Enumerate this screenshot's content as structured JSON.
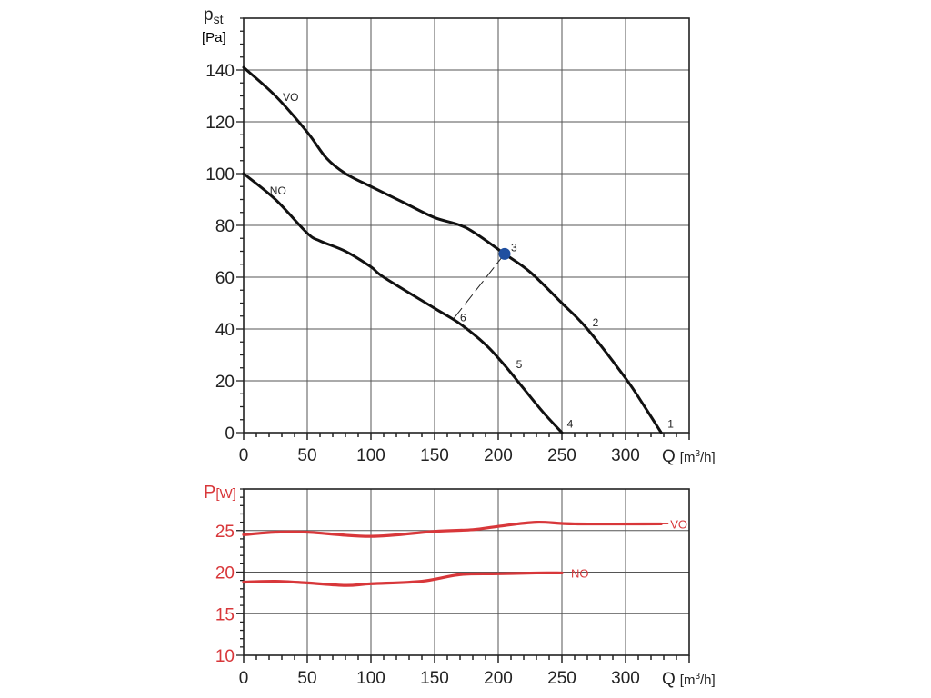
{
  "chart_data": [
    {
      "type": "line",
      "title": "",
      "ylabel_main": "p",
      "ylabel_sub": "st",
      "ylabel_unit": "[Pa]",
      "xlabel": "Q",
      "xlabel_unit_pre": "[m",
      "xlabel_unit_sup": "3",
      "xlabel_unit_post": "/h]",
      "xlim": [
        0,
        350
      ],
      "ylim": [
        0,
        160
      ],
      "xticks": [
        0,
        50,
        100,
        150,
        200,
        250,
        300
      ],
      "yticks": [
        0,
        20,
        40,
        60,
        80,
        100,
        120,
        140
      ],
      "grid": true,
      "series": [
        {
          "name": "VO",
          "color": "#111111",
          "x": [
            0,
            25,
            50,
            65,
            80,
            100,
            125,
            150,
            175,
            205,
            225,
            250,
            270,
            300,
            315,
            328
          ],
          "y": [
            141,
            130,
            116,
            106,
            100,
            95,
            89,
            83,
            79,
            69,
            62,
            50,
            40,
            21,
            10,
            0
          ],
          "label_at": [
            37,
            128
          ]
        },
        {
          "name": "NO",
          "color": "#111111",
          "x": [
            0,
            25,
            50,
            60,
            80,
            100,
            110,
            150,
            170,
            190,
            205,
            220,
            235,
            250
          ],
          "y": [
            100,
            90,
            77,
            74,
            70,
            64,
            60,
            48,
            42,
            34,
            26,
            17,
            8,
            0
          ],
          "label_at": [
            27,
            92
          ]
        }
      ],
      "operating_point": {
        "label": "3",
        "x": 205,
        "y": 69,
        "color": "#1f4fa0"
      },
      "dashed_line": {
        "from": [
          205,
          69
        ],
        "to": [
          165,
          44
        ]
      },
      "point_labels": [
        {
          "label": "1",
          "x": 333,
          "y": 2
        },
        {
          "label": "2",
          "x": 274,
          "y": 41
        },
        {
          "label": "3",
          "x": 210,
          "y": 70
        },
        {
          "label": "4",
          "x": 254,
          "y": 2
        },
        {
          "label": "5",
          "x": 214,
          "y": 25
        },
        {
          "label": "6",
          "x": 170,
          "y": 43
        }
      ]
    },
    {
      "type": "line",
      "title": "",
      "ylabel_main": "P",
      "ylabel_unit": "[W]",
      "xlabel": "Q",
      "xlabel_unit_pre": "[m",
      "xlabel_unit_sup": "3",
      "xlabel_unit_post": "/h]",
      "xlim": [
        0,
        350
      ],
      "ylim": [
        10,
        30
      ],
      "xticks": [
        0,
        50,
        100,
        150,
        200,
        250,
        300
      ],
      "yticks": [
        10,
        15,
        20,
        25
      ],
      "grid": true,
      "color": "#d8373a",
      "series": [
        {
          "name": "VO",
          "color": "#d8373a",
          "x": [
            0,
            25,
            50,
            100,
            150,
            180,
            200,
            230,
            260,
            328
          ],
          "y": [
            24.5,
            24.8,
            24.8,
            24.3,
            24.9,
            25.1,
            25.5,
            26.0,
            25.8,
            25.8
          ]
        },
        {
          "name": "NO",
          "color": "#d8373a",
          "x": [
            0,
            25,
            50,
            80,
            100,
            140,
            170,
            200,
            230,
            250
          ],
          "y": [
            18.8,
            18.9,
            18.7,
            18.4,
            18.6,
            18.9,
            19.7,
            19.8,
            19.9,
            19.9
          ]
        }
      ]
    }
  ]
}
